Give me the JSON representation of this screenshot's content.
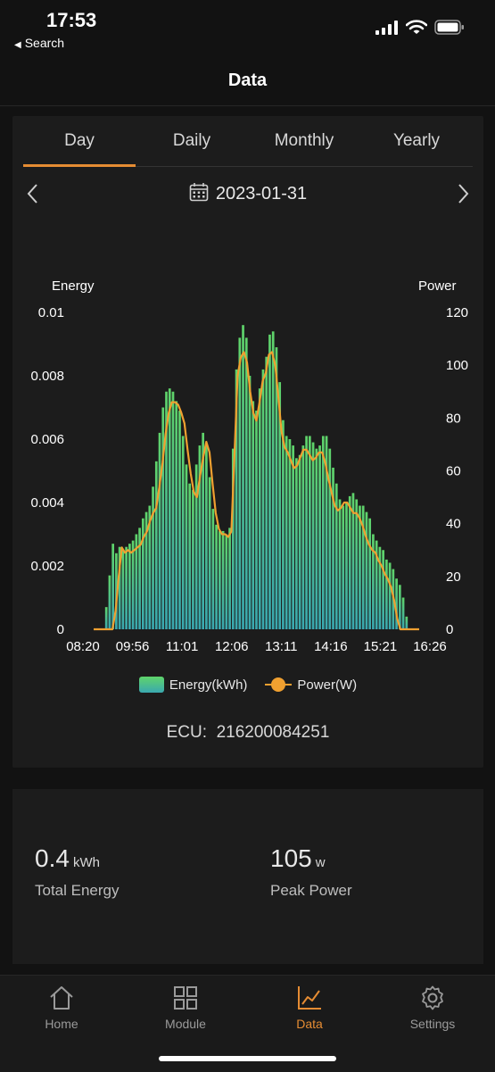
{
  "status": {
    "time": "17:53",
    "back_label": "Search"
  },
  "header": {
    "title": "Data"
  },
  "tabs": [
    {
      "label": "Day",
      "active": true
    },
    {
      "label": "Daily",
      "active": false
    },
    {
      "label": "Monthly",
      "active": false
    },
    {
      "label": "Yearly",
      "active": false
    }
  ],
  "date": "2023-01-31",
  "ecu": {
    "label": "ECU:",
    "value": "216200084251"
  },
  "summary": {
    "total_energy": {
      "value": "0.4",
      "unit": "kWh",
      "label": "Total Energy"
    },
    "peak_power": {
      "value": "105",
      "unit": "w",
      "label": "Peak Power"
    }
  },
  "nav": [
    {
      "label": "Home",
      "icon": "house-icon",
      "active": false
    },
    {
      "label": "Module",
      "icon": "grid-icon",
      "active": false
    },
    {
      "label": "Data",
      "icon": "line-chart-icon",
      "active": true
    },
    {
      "label": "Settings",
      "icon": "gear-icon",
      "active": false
    }
  ],
  "colors": {
    "accent": "#e58c33",
    "energy_top": "#5fd46a",
    "energy_bottom": "#3aa8b0",
    "power": "#f0a030"
  },
  "chart_data": {
    "type": "bar",
    "ylabel_left": "Energy",
    "ylabel_right": "Power",
    "ylim_left": [
      0,
      0.01
    ],
    "ylim_right": [
      0,
      120
    ],
    "yticks_left": [
      "0.01",
      "0.008",
      "0.006",
      "0.004",
      "0.002",
      "0"
    ],
    "yticks_right": [
      "120",
      "100",
      "80",
      "60",
      "40",
      "20",
      "0"
    ],
    "xticks": [
      "08:20",
      "09:56",
      "11:01",
      "12:06",
      "13:11",
      "14:16",
      "15:21",
      "16:26"
    ],
    "legend": [
      "Energy(kWh)",
      "Power(W)"
    ],
    "series": [
      {
        "name": "Energy(kWh)",
        "kind": "bar",
        "values": [
          0,
          0,
          0,
          0,
          0,
          0,
          0,
          0.0007,
          0.0017,
          0.0027,
          0.0024,
          0.0026,
          0.0025,
          0.0026,
          0.0027,
          0.0028,
          0.003,
          0.0032,
          0.0035,
          0.0037,
          0.0039,
          0.0045,
          0.0053,
          0.0062,
          0.007,
          0.0075,
          0.0076,
          0.0075,
          0.0072,
          0.0069,
          0.0061,
          0.0052,
          0.0046,
          0.0044,
          0.0052,
          0.0058,
          0.0062,
          0.0058,
          0.0048,
          0.0038,
          0.0033,
          0.0031,
          0.0031,
          0.003,
          0.0032,
          0.0057,
          0.0082,
          0.0092,
          0.0096,
          0.0092,
          0.008,
          0.0072,
          0.0069,
          0.0076,
          0.0082,
          0.0086,
          0.0093,
          0.0094,
          0.0089,
          0.0078,
          0.0066,
          0.0061,
          0.006,
          0.0058,
          0.0054,
          0.0055,
          0.0058,
          0.0061,
          0.0061,
          0.0059,
          0.0057,
          0.0058,
          0.0061,
          0.0061,
          0.0057,
          0.0051,
          0.0046,
          0.0041,
          0.0039,
          0.004,
          0.0042,
          0.0043,
          0.0041,
          0.0039,
          0.0039,
          0.0037,
          0.0035,
          0.003,
          0.0028,
          0.0026,
          0.0025,
          0.0022,
          0.0021,
          0.0019,
          0.0016,
          0.0014,
          0.001,
          0.0004,
          0,
          0,
          0,
          0,
          0,
          0,
          0
        ]
      },
      {
        "name": "Power(W)",
        "kind": "line",
        "values": [
          0,
          0,
          0,
          0,
          0,
          0,
          0,
          7,
          20,
          31,
          29,
          30,
          29,
          30,
          31,
          32,
          35,
          37,
          41,
          44,
          46,
          54,
          63,
          74,
          82,
          86,
          86,
          85,
          82,
          78,
          68,
          59,
          52,
          50,
          58,
          65,
          71,
          67,
          55,
          44,
          38,
          36,
          36,
          35,
          37,
          66,
          96,
          103,
          105,
          101,
          90,
          82,
          79,
          86,
          94,
          97,
          104,
          105,
          100,
          88,
          75,
          69,
          67,
          64,
          61,
          62,
          65,
          68,
          68,
          66,
          64,
          65,
          67,
          67,
          63,
          57,
          52,
          47,
          45,
          46,
          48,
          48,
          46,
          44,
          44,
          42,
          39,
          35,
          32,
          30,
          29,
          26,
          24,
          21,
          19,
          16,
          11,
          4,
          0,
          0,
          0,
          0,
          0,
          0,
          0
        ]
      }
    ]
  }
}
